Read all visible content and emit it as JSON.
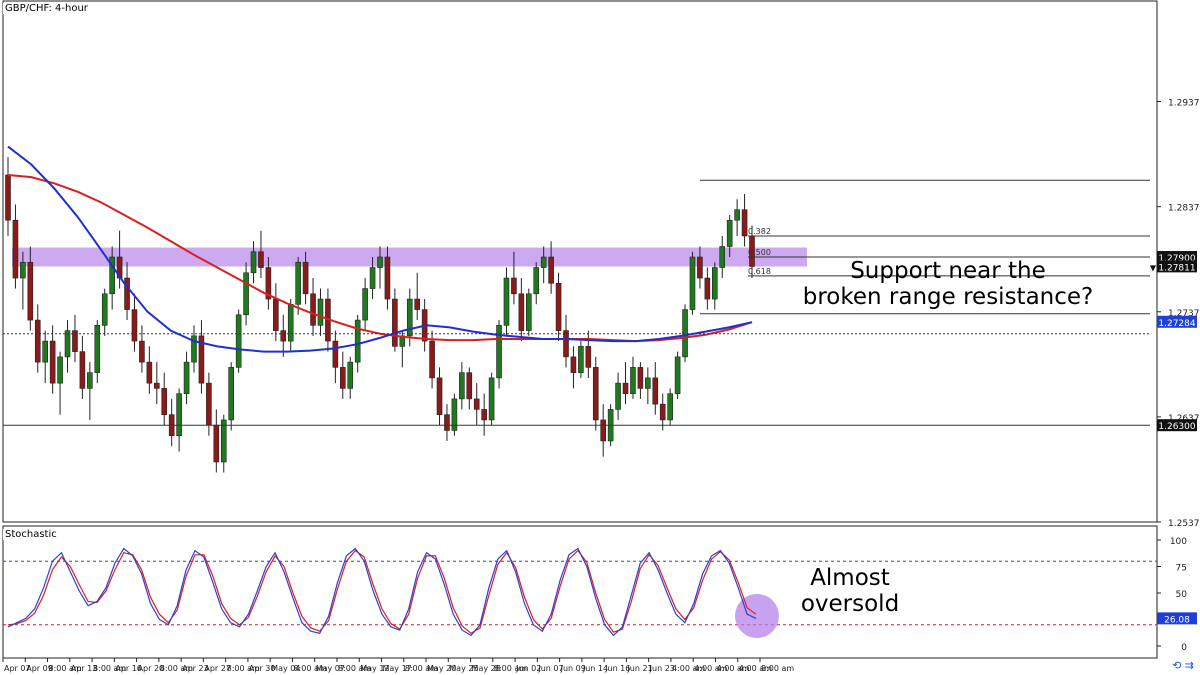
{
  "chart_data": {
    "type": "candlestick",
    "title": "GBP/CHF: 4-hour",
    "price_axis": {
      "range": [
        1.25379,
        1.3025
      ],
      "tick_labels": [
        "1.29379",
        "1.28379",
        "1.27379",
        "1.26379",
        "1.25379"
      ],
      "ticks": [
        1.29379,
        1.28379,
        1.27379,
        1.26379,
        1.25379
      ],
      "price_tags": [
        {
          "label": "1.27900",
          "value": 1.279,
          "style": "dark"
        },
        {
          "label": "1.27811",
          "value": 1.27811,
          "style": "dark",
          "marker": "▼"
        },
        {
          "label": "1.27284",
          "value": 1.27284,
          "style": "blue"
        },
        {
          "label": "1.26300",
          "value": 1.263,
          "style": "dark"
        }
      ]
    },
    "time_axis": {
      "labels": [
        "Apr 07",
        "Apr 09",
        "8:00 am",
        "Apr 13",
        "8:00 am",
        "Apr 16",
        "Apr 20",
        "8:00 am",
        "Apr 23",
        "Apr 27",
        "8:00 am",
        "Apr 30",
        "May 04",
        "8:00 am",
        "May 07",
        "8:00 am",
        "May 12",
        "May 17",
        "8:00 am",
        "May 20",
        "May 25",
        "May 28",
        "8:00 am",
        "Jun 02",
        "Jun 07",
        "Jun 09",
        "Jun 14",
        "Jun 16",
        "Jun 21",
        "Jun 23",
        "4:00 am",
        "4:00 am",
        "4:00 am",
        "4:00 am",
        "8:00 am"
      ]
    },
    "ohlc": [
      [
        1.2868,
        1.2885,
        1.281,
        1.2825
      ],
      [
        1.2825,
        1.284,
        1.276,
        1.277
      ],
      [
        1.277,
        1.2795,
        1.274,
        1.2785
      ],
      [
        1.2785,
        1.28,
        1.272,
        1.273
      ],
      [
        1.273,
        1.2745,
        1.268,
        1.269
      ],
      [
        1.269,
        1.272,
        1.267,
        1.271
      ],
      [
        1.271,
        1.2725,
        1.266,
        1.267
      ],
      [
        1.267,
        1.27,
        1.264,
        1.2695
      ],
      [
        1.2695,
        1.273,
        1.268,
        1.272
      ],
      [
        1.272,
        1.2735,
        1.269,
        1.27
      ],
      [
        1.27,
        1.2715,
        1.2655,
        1.2665
      ],
      [
        1.2665,
        1.269,
        1.2635,
        1.268
      ],
      [
        1.268,
        1.273,
        1.267,
        1.2725
      ],
      [
        1.2725,
        1.276,
        1.2715,
        1.2755
      ],
      [
        1.2755,
        1.28,
        1.274,
        1.279
      ],
      [
        1.279,
        1.2815,
        1.276,
        1.277
      ],
      [
        1.277,
        1.2785,
        1.273,
        1.274
      ],
      [
        1.274,
        1.2755,
        1.27,
        1.271
      ],
      [
        1.271,
        1.2725,
        1.268,
        1.269
      ],
      [
        1.269,
        1.2705,
        1.266,
        1.267
      ],
      [
        1.267,
        1.269,
        1.265,
        1.2665
      ],
      [
        1.2665,
        1.268,
        1.263,
        1.264
      ],
      [
        1.264,
        1.2655,
        1.261,
        1.262
      ],
      [
        1.262,
        1.2665,
        1.2605,
        1.266
      ],
      [
        1.266,
        1.27,
        1.265,
        1.269
      ],
      [
        1.269,
        1.2725,
        1.268,
        1.2715
      ],
      [
        1.2715,
        1.273,
        1.266,
        1.267
      ],
      [
        1.267,
        1.268,
        1.262,
        1.263
      ],
      [
        1.263,
        1.2645,
        1.2585,
        1.2595
      ],
      [
        1.2595,
        1.264,
        1.2585,
        1.2635
      ],
      [
        1.2635,
        1.269,
        1.2625,
        1.2685
      ],
      [
        1.2685,
        1.274,
        1.268,
        1.2735
      ],
      [
        1.2735,
        1.2785,
        1.2725,
        1.2775
      ],
      [
        1.2775,
        1.2805,
        1.2765,
        1.2795
      ],
      [
        1.2795,
        1.2815,
        1.277,
        1.278
      ],
      [
        1.278,
        1.279,
        1.274,
        1.275
      ],
      [
        1.275,
        1.2765,
        1.271,
        1.272
      ],
      [
        1.272,
        1.2735,
        1.2695,
        1.271
      ],
      [
        1.271,
        1.275,
        1.27,
        1.2745
      ],
      [
        1.2745,
        1.279,
        1.2735,
        1.2785
      ],
      [
        1.2785,
        1.2795,
        1.2745,
        1.2755
      ],
      [
        1.2755,
        1.277,
        1.2715,
        1.2725
      ],
      [
        1.2725,
        1.276,
        1.2715,
        1.275
      ],
      [
        1.275,
        1.276,
        1.27,
        1.271
      ],
      [
        1.271,
        1.272,
        1.267,
        1.2685
      ],
      [
        1.2685,
        1.27,
        1.2655,
        1.2665
      ],
      [
        1.2665,
        1.2695,
        1.2655,
        1.269
      ],
      [
        1.269,
        1.2735,
        1.268,
        1.273
      ],
      [
        1.273,
        1.277,
        1.272,
        1.276
      ],
      [
        1.276,
        1.279,
        1.275,
        1.278
      ],
      [
        1.278,
        1.28,
        1.276,
        1.279
      ],
      [
        1.279,
        1.28,
        1.274,
        1.275
      ],
      [
        1.275,
        1.276,
        1.27,
        1.2705
      ],
      [
        1.2705,
        1.272,
        1.2685,
        1.2715
      ],
      [
        1.2715,
        1.276,
        1.2705,
        1.275
      ],
      [
        1.275,
        1.2775,
        1.273,
        1.274
      ],
      [
        1.274,
        1.275,
        1.27,
        1.271
      ],
      [
        1.271,
        1.272,
        1.2665,
        1.2675
      ],
      [
        1.2675,
        1.2685,
        1.263,
        1.264
      ],
      [
        1.264,
        1.265,
        1.2615,
        1.2625
      ],
      [
        1.2625,
        1.266,
        1.262,
        1.2655
      ],
      [
        1.2655,
        1.269,
        1.2645,
        1.268
      ],
      [
        1.268,
        1.2685,
        1.2645,
        1.2655
      ],
      [
        1.2655,
        1.267,
        1.263,
        1.2645
      ],
      [
        1.2645,
        1.266,
        1.262,
        1.2635
      ],
      [
        1.2635,
        1.268,
        1.263,
        1.2675
      ],
      [
        1.2675,
        1.273,
        1.2665,
        1.2725
      ],
      [
        1.2725,
        1.278,
        1.2715,
        1.277
      ],
      [
        1.277,
        1.2795,
        1.2745,
        1.2755
      ],
      [
        1.2755,
        1.277,
        1.271,
        1.272
      ],
      [
        1.272,
        1.276,
        1.2715,
        1.2755
      ],
      [
        1.2755,
        1.2785,
        1.2745,
        1.278
      ],
      [
        1.278,
        1.28,
        1.2765,
        1.279
      ],
      [
        1.279,
        1.2805,
        1.2755,
        1.2765
      ],
      [
        1.2765,
        1.2775,
        1.271,
        1.272
      ],
      [
        1.272,
        1.2735,
        1.2685,
        1.2695
      ],
      [
        1.2695,
        1.2705,
        1.2665,
        1.268
      ],
      [
        1.268,
        1.271,
        1.2675,
        1.2705
      ],
      [
        1.2705,
        1.272,
        1.2675,
        1.2685
      ],
      [
        1.2685,
        1.2695,
        1.2625,
        1.2635
      ],
      [
        1.2635,
        1.265,
        1.26,
        1.2615
      ],
      [
        1.2615,
        1.265,
        1.261,
        1.2645
      ],
      [
        1.2645,
        1.268,
        1.2635,
        1.267
      ],
      [
        1.267,
        1.269,
        1.265,
        1.266
      ],
      [
        1.266,
        1.2695,
        1.2655,
        1.2685
      ],
      [
        1.2685,
        1.269,
        1.2655,
        1.2665
      ],
      [
        1.2665,
        1.2685,
        1.265,
        1.2675
      ],
      [
        1.2675,
        1.269,
        1.264,
        1.265
      ],
      [
        1.265,
        1.266,
        1.2625,
        1.2635
      ],
      [
        1.2635,
        1.2665,
        1.263,
        1.266
      ],
      [
        1.266,
        1.27,
        1.2655,
        1.2695
      ],
      [
        1.2695,
        1.2745,
        1.269,
        1.274
      ],
      [
        1.274,
        1.2795,
        1.2735,
        1.279
      ],
      [
        1.279,
        1.28,
        1.276,
        1.277
      ],
      [
        1.277,
        1.278,
        1.274,
        1.275
      ],
      [
        1.275,
        1.2785,
        1.274,
        1.278
      ],
      [
        1.278,
        1.281,
        1.277,
        1.28
      ],
      [
        1.28,
        1.283,
        1.279,
        1.2825
      ],
      [
        1.2825,
        1.2845,
        1.281,
        1.2835
      ],
      [
        1.2835,
        1.285,
        1.28,
        1.281
      ],
      [
        1.281,
        1.282,
        1.277,
        1.2781
      ]
    ],
    "series": [
      {
        "name": "",
        "color": "#d82020",
        "values": [
          1.2868,
          1.2866,
          1.286,
          1.2852,
          1.2842,
          1.283,
          1.2818,
          1.2805,
          1.2792,
          1.278,
          1.2768,
          1.2756,
          1.2746,
          1.2737,
          1.2729,
          1.2722,
          1.2717,
          1.2714,
          1.2712,
          1.2711,
          1.2711,
          1.2712,
          1.2712,
          1.2712,
          1.2712,
          1.2712,
          1.2711,
          1.271,
          1.2711,
          1.2713,
          1.2716,
          1.2721,
          1.2728
        ]
      },
      {
        "name": "",
        "color": "#1f2fd0",
        "values": [
          1.2895,
          1.2878,
          1.2855,
          1.2828,
          1.2797,
          1.2765,
          1.2738,
          1.272,
          1.271,
          1.2705,
          1.2702,
          1.27,
          1.27,
          1.2701,
          1.2703,
          1.2707,
          1.2713,
          1.272,
          1.2725,
          1.2723,
          1.2719,
          1.2716,
          1.2714,
          1.2712,
          1.2712,
          1.2711,
          1.271,
          1.271,
          1.2712,
          1.2715,
          1.2719,
          1.2723,
          1.2728
        ]
      }
    ],
    "levels": [
      {
        "value": 1.2863,
        "style": "solid"
      },
      {
        "value": 1.281,
        "style": "solid",
        "label": "0.382"
      },
      {
        "value": 1.279,
        "style": "solid",
        "label": "0.500"
      },
      {
        "value": 1.2772,
        "style": "solid",
        "label": "0.618"
      },
      {
        "value": 1.2736,
        "style": "solid"
      },
      {
        "value": 1.2717,
        "style": "dotted"
      },
      {
        "value": 1.263,
        "style": "solid"
      }
    ],
    "highlight_zone": {
      "from": 1.2781,
      "to": 1.2799,
      "color": "#b07be8"
    },
    "annotations": {
      "support": [
        "Support near the",
        "broken range resistance?"
      ],
      "oversold": [
        "Almost",
        "oversold"
      ]
    },
    "stochastic": {
      "label": "Stochastic",
      "ylim": [
        0,
        100
      ],
      "tick_labels": [
        "100",
        "75",
        "50",
        "25",
        "0"
      ],
      "ticks": [
        100,
        75,
        50,
        25,
        0
      ],
      "overbought": 80,
      "oversold": 20,
      "value_tag": "26.08",
      "k": [
        18,
        22,
        26,
        35,
        55,
        80,
        88,
        70,
        52,
        38,
        42,
        55,
        78,
        92,
        85,
        68,
        40,
        25,
        20,
        38,
        72,
        90,
        84,
        60,
        35,
        22,
        18,
        30,
        52,
        75,
        88,
        70,
        45,
        22,
        14,
        12,
        28,
        60,
        85,
        92,
        80,
        52,
        30,
        18,
        15,
        35,
        70,
        88,
        82,
        58,
        30,
        15,
        10,
        20,
        55,
        82,
        90,
        70,
        40,
        20,
        14,
        30,
        62,
        86,
        92,
        75,
        45,
        20,
        10,
        18,
        48,
        78,
        88,
        72,
        50,
        30,
        22,
        40,
        68,
        85,
        90,
        78,
        55,
        30,
        26.08
      ],
      "d": [
        20,
        21,
        24,
        31,
        48,
        72,
        84,
        75,
        58,
        42,
        41,
        52,
        72,
        88,
        86,
        72,
        46,
        30,
        22,
        34,
        66,
        86,
        86,
        66,
        40,
        26,
        20,
        27,
        47,
        70,
        85,
        75,
        50,
        28,
        17,
        14,
        24,
        54,
        80,
        90,
        84,
        58,
        35,
        21,
        16,
        30,
        64,
        85,
        85,
        64,
        36,
        19,
        12,
        17,
        48,
        77,
        88,
        74,
        46,
        25,
        16,
        26,
        56,
        82,
        90,
        79,
        50,
        25,
        13,
        16,
        42,
        73,
        86,
        76,
        55,
        35,
        25,
        36,
        62,
        82,
        89,
        81,
        60,
        36,
        30
      ]
    },
    "ui": {
      "bottom_icons": "⟲ ⇉"
    }
  }
}
